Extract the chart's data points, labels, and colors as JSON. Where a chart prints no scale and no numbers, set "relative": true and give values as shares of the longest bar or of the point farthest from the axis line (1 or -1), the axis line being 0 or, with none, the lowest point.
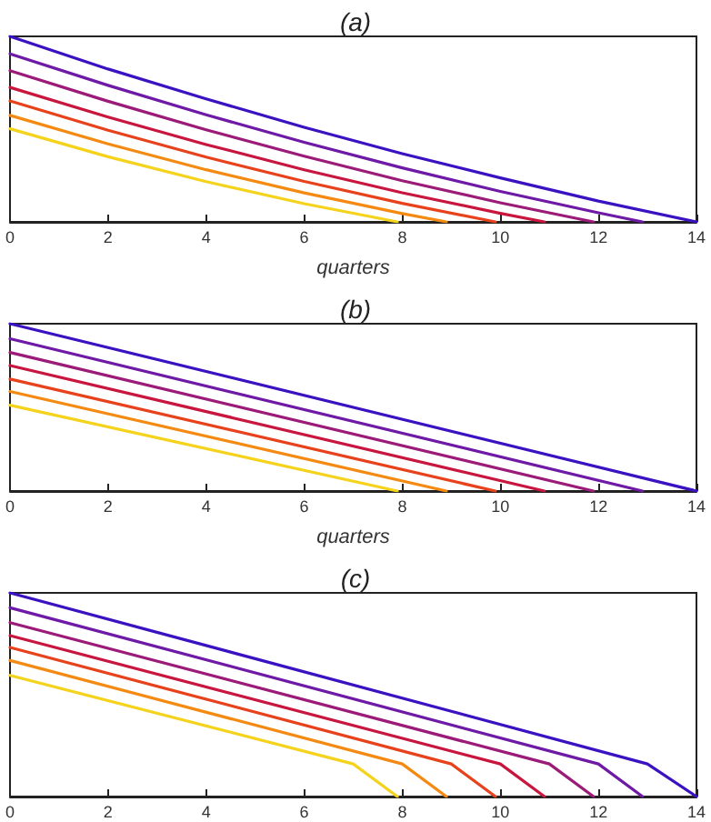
{
  "chart_data": [
    {
      "type": "line",
      "title": "(a)",
      "xlabel": "quarters",
      "xlim": [
        0,
        14
      ],
      "xticks": [
        0,
        2,
        4,
        6,
        8,
        10,
        12,
        14
      ],
      "relative": true,
      "grid": false,
      "marker": "none",
      "series": [
        {
          "color": "#3a12c2",
          "x": [
            0,
            2,
            4,
            6,
            8,
            10,
            12,
            14
          ],
          "values": [
            1,
            0.824,
            0.663,
            0.51,
            0.368,
            0.237,
            0.112,
            0
          ]
        },
        {
          "color": "#6e1aa6",
          "x": [
            0,
            2,
            4,
            6,
            8,
            10,
            12,
            12.9
          ],
          "values": [
            0.906,
            0.736,
            0.577,
            0.429,
            0.291,
            0.164,
            0.049,
            0
          ]
        },
        {
          "color": "#9c1a78",
          "x": [
            0,
            2,
            4,
            6,
            8,
            10,
            11.9
          ],
          "values": [
            0.815,
            0.65,
            0.496,
            0.354,
            0.222,
            0.103,
            0
          ]
        },
        {
          "color": "#c8163e",
          "x": [
            0,
            2,
            4,
            6,
            8,
            10,
            10.9
          ],
          "values": [
            0.725,
            0.565,
            0.417,
            0.281,
            0.157,
            0.046,
            0
          ]
        },
        {
          "color": "#e8421c",
          "x": [
            0,
            2,
            4,
            6,
            8,
            9.9
          ],
          "values": [
            0.652,
            0.494,
            0.349,
            0.218,
            0.1,
            0
          ]
        },
        {
          "color": "#f58a12",
          "x": [
            0,
            2,
            4,
            6,
            8,
            8.9
          ],
          "values": [
            0.574,
            0.42,
            0.281,
            0.156,
            0.045,
            0
          ]
        },
        {
          "color": "#f5d21c",
          "x": [
            0,
            2,
            4,
            6,
            7.9
          ],
          "values": [
            0.502,
            0.351,
            0.217,
            0.098,
            0
          ]
        }
      ]
    },
    {
      "type": "line",
      "title": "(b)",
      "xlabel": "quarters",
      "xlim": [
        0,
        14
      ],
      "xticks": [
        0,
        2,
        4,
        6,
        8,
        10,
        12,
        14
      ],
      "relative": true,
      "grid": false,
      "marker": "none",
      "series": [
        {
          "color": "#3a12c2",
          "x": [
            0,
            14
          ],
          "values": [
            1,
            0
          ]
        },
        {
          "color": "#6e1aa6",
          "x": [
            0,
            12.9
          ],
          "values": [
            0.91,
            0
          ]
        },
        {
          "color": "#9c1a78",
          "x": [
            0,
            11.9
          ],
          "values": [
            0.828,
            0
          ]
        },
        {
          "color": "#c8163e",
          "x": [
            0,
            10.9
          ],
          "values": [
            0.75,
            0
          ]
        },
        {
          "color": "#e8421c",
          "x": [
            0,
            9.9
          ],
          "values": [
            0.669,
            0
          ]
        },
        {
          "color": "#f58a12",
          "x": [
            0,
            8.9
          ],
          "values": [
            0.595,
            0
          ]
        },
        {
          "color": "#f5d21c",
          "x": [
            0,
            7.9
          ],
          "values": [
            0.513,
            0
          ]
        }
      ]
    },
    {
      "type": "line",
      "title": "(c)",
      "xlim": [
        0,
        14
      ],
      "xticks": [
        0,
        2,
        4,
        6,
        8,
        10,
        12,
        14
      ],
      "relative": true,
      "grid": false,
      "marker": "none",
      "series": [
        {
          "color": "#3a12c2",
          "x": [
            0,
            13,
            14
          ],
          "values": [
            1,
            0.16,
            0
          ]
        },
        {
          "color": "#6e1aa6",
          "x": [
            0,
            12,
            12.9
          ],
          "values": [
            0.927,
            0.16,
            0
          ]
        },
        {
          "color": "#9c1a78",
          "x": [
            0,
            11,
            11.9
          ],
          "values": [
            0.854,
            0.16,
            0
          ]
        },
        {
          "color": "#c8163e",
          "x": [
            0,
            10,
            10.9
          ],
          "values": [
            0.79,
            0.16,
            0
          ]
        },
        {
          "color": "#e8421c",
          "x": [
            0,
            9,
            9.9
          ],
          "values": [
            0.732,
            0.16,
            0
          ]
        },
        {
          "color": "#f58a12",
          "x": [
            0,
            8,
            8.9
          ],
          "values": [
            0.668,
            0.16,
            0
          ]
        },
        {
          "color": "#f5d21c",
          "x": [
            0,
            7,
            7.9
          ],
          "values": [
            0.595,
            0.16,
            0
          ]
        }
      ]
    }
  ]
}
